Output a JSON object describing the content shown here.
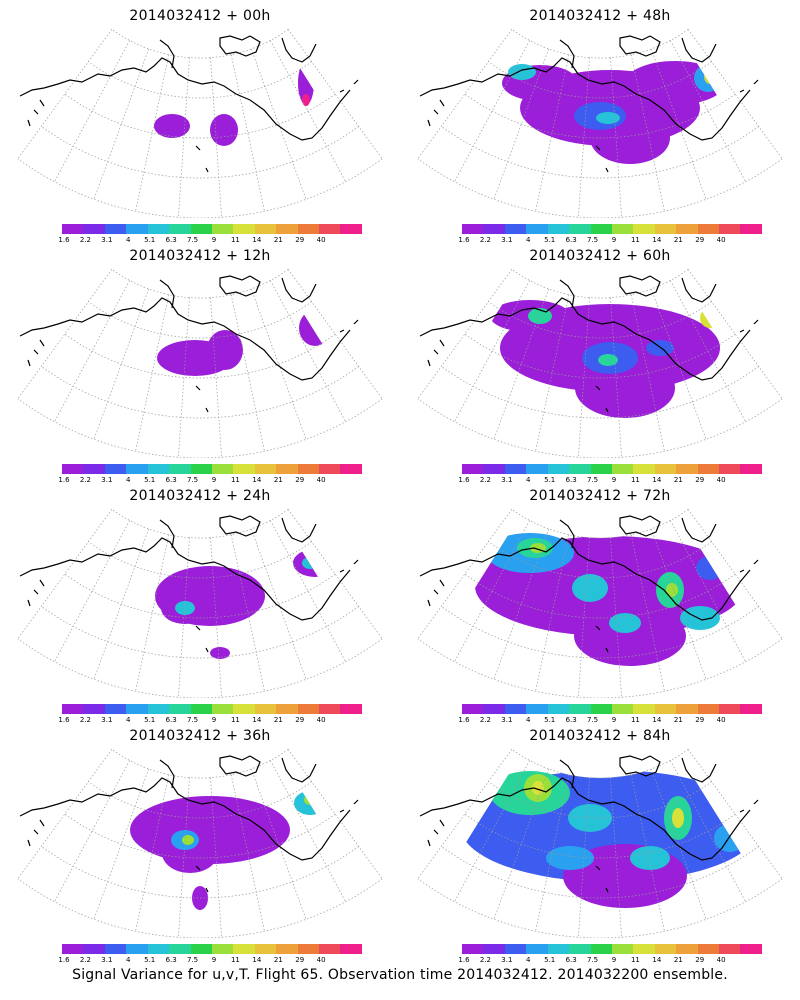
{
  "panels": [
    {
      "title": "2014032412 + 00h"
    },
    {
      "title": "2014032412 + 48h"
    },
    {
      "title": "2014032412 + 12h"
    },
    {
      "title": "2014032412 + 60h"
    },
    {
      "title": "2014032412 + 24h"
    },
    {
      "title": "2014032412 + 72h"
    },
    {
      "title": "2014032412 + 36h"
    },
    {
      "title": "2014032412 + 84h"
    }
  ],
  "colorbar": {
    "labels": [
      "1.6",
      "2.2",
      "3.1",
      "4",
      "5.1",
      "6.3",
      "7.5",
      "9",
      "11",
      "14",
      "21",
      "29",
      "40"
    ],
    "colors": [
      "#9b1fd8",
      "#7b2be8",
      "#3d5cf0",
      "#2aa0f0",
      "#26c3d8",
      "#27d49a",
      "#2ad24a",
      "#9be03a",
      "#d8e03a",
      "#e8c23a",
      "#eea03a",
      "#ee7a3a",
      "#ee4a5a",
      "#ee1f8a"
    ]
  },
  "caption": "Signal Variance for u,v,T. Flight 65. Observation time 2014032412. 2014032200 ensemble."
}
